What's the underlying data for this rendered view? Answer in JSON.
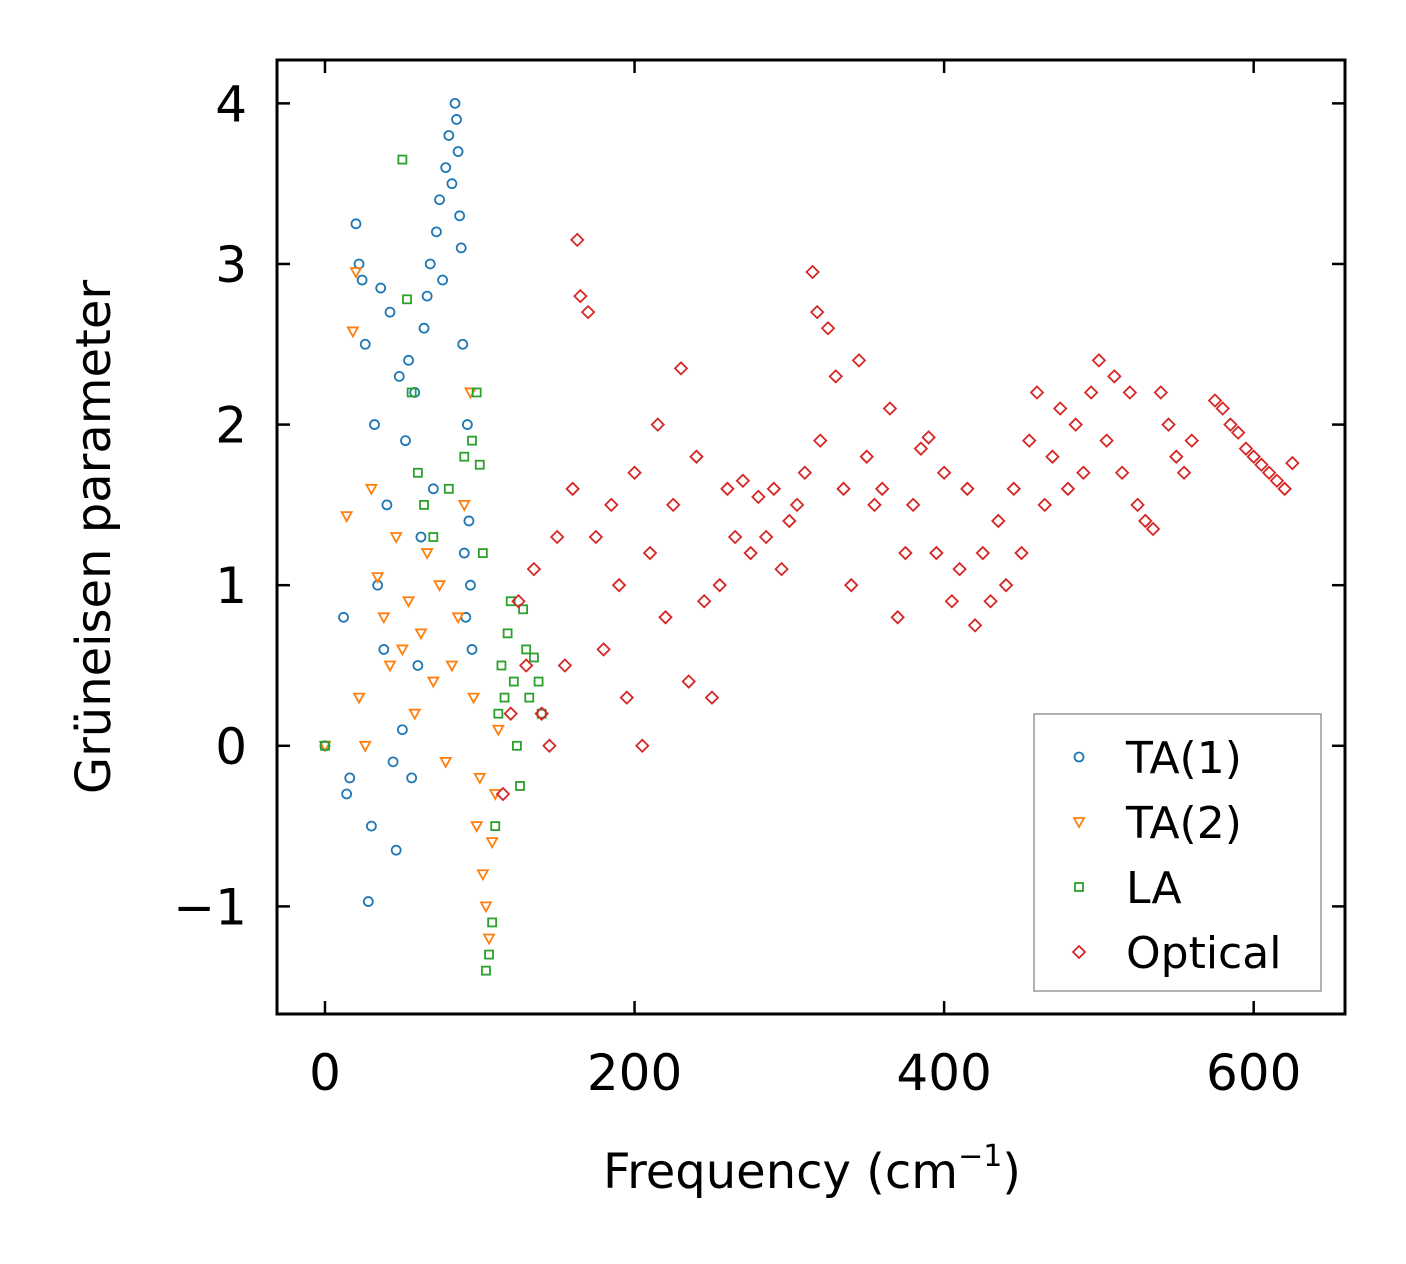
{
  "chart_data": {
    "type": "scatter",
    "title": "",
    "xlabel": "Frequency (cm",
    "xlabel_sup": "−1",
    "xlabel_close": ")",
    "ylabel": "Grüneisen parameter",
    "xlim": [
      -31,
      659
    ],
    "ylim": [
      -1.67,
      4.27
    ],
    "xticks": [
      0,
      200,
      400,
      600
    ],
    "xtick_labels": [
      "0",
      "200",
      "400",
      "600"
    ],
    "yticks": [
      -1,
      0,
      1,
      2,
      3,
      4
    ],
    "ytick_labels": [
      "−1",
      "0",
      "1",
      "2",
      "3",
      "4"
    ],
    "legend_position": "lower-right",
    "colors": {
      "ta1": "#1f77b4",
      "ta2": "#ff7f0e",
      "la": "#2ca02c",
      "optical": "#d62728"
    },
    "series": [
      {
        "name": "TA(1)",
        "marker": "circle",
        "color": "#1f77b4",
        "x": [
          0,
          12,
          14,
          16,
          20,
          22,
          24,
          26,
          28,
          30,
          32,
          34,
          36,
          38,
          40,
          42,
          44,
          46,
          48,
          50,
          52,
          54,
          56,
          58,
          60,
          62,
          64,
          66,
          68,
          70,
          72,
          74,
          76,
          78,
          80,
          82,
          84,
          85,
          86,
          87,
          88,
          89,
          90,
          91,
          92,
          93,
          94,
          95
        ],
        "y": [
          0.0,
          0.8,
          -0.3,
          -0.2,
          3.25,
          3.0,
          2.9,
          2.5,
          -0.97,
          -0.5,
          2.0,
          1.0,
          2.85,
          0.6,
          1.5,
          2.7,
          -0.1,
          -0.65,
          2.3,
          0.1,
          1.9,
          2.4,
          -0.2,
          2.2,
          0.5,
          1.3,
          2.6,
          2.8,
          3.0,
          1.6,
          3.2,
          3.4,
          2.9,
          3.6,
          3.8,
          3.5,
          4.0,
          3.9,
          3.7,
          3.3,
          3.1,
          2.5,
          1.2,
          0.8,
          2.0,
          1.4,
          1.0,
          0.6
        ]
      },
      {
        "name": "TA(2)",
        "marker": "triangle-down",
        "color": "#ff7f0e",
        "x": [
          0,
          14,
          18,
          20,
          22,
          26,
          30,
          34,
          38,
          42,
          46,
          50,
          54,
          58,
          62,
          66,
          70,
          74,
          78,
          82,
          86,
          90,
          94,
          96,
          98,
          100,
          102,
          104,
          106,
          108,
          110,
          112
        ],
        "y": [
          0.0,
          1.43,
          2.58,
          2.95,
          0.3,
          0.0,
          1.6,
          1.05,
          0.8,
          0.5,
          1.3,
          0.6,
          0.9,
          0.2,
          0.7,
          1.2,
          0.4,
          1.0,
          -0.1,
          0.5,
          0.8,
          1.5,
          2.2,
          0.3,
          -0.5,
          -0.2,
          -0.8,
          -1.0,
          -1.2,
          -0.6,
          -0.3,
          0.1
        ]
      },
      {
        "name": "LA",
        "marker": "square",
        "color": "#2ca02c",
        "x": [
          0,
          50,
          53,
          56,
          60,
          64,
          70,
          80,
          90,
          95,
          98,
          100,
          102,
          104,
          106,
          108,
          110,
          112,
          114,
          116,
          118,
          120,
          122,
          124,
          126,
          128,
          130,
          132,
          135,
          138,
          140
        ],
        "y": [
          0.0,
          3.65,
          2.78,
          2.2,
          1.7,
          1.5,
          1.3,
          1.6,
          1.8,
          1.9,
          2.2,
          1.75,
          1.2,
          -1.4,
          -1.3,
          -1.1,
          -0.5,
          0.2,
          0.5,
          0.3,
          0.7,
          0.9,
          0.4,
          0.0,
          -0.25,
          0.85,
          0.6,
          0.3,
          0.55,
          0.4,
          0.2
        ]
      },
      {
        "name": "Optical",
        "marker": "diamond",
        "color": "#d62728",
        "x": [
          115,
          120,
          125,
          130,
          135,
          140,
          145,
          150,
          155,
          160,
          163,
          165,
          170,
          175,
          180,
          185,
          190,
          195,
          200,
          205,
          210,
          215,
          220,
          225,
          230,
          235,
          240,
          245,
          250,
          255,
          260,
          265,
          270,
          275,
          280,
          285,
          290,
          295,
          300,
          305,
          310,
          315,
          318,
          320,
          325,
          330,
          335,
          340,
          345,
          350,
          355,
          360,
          365,
          370,
          375,
          380,
          385,
          390,
          395,
          400,
          405,
          410,
          415,
          420,
          425,
          430,
          435,
          440,
          445,
          450,
          455,
          460,
          465,
          470,
          475,
          480,
          485,
          490,
          495,
          500,
          505,
          510,
          515,
          520,
          525,
          530,
          535,
          540,
          545,
          550,
          555,
          560,
          575,
          580,
          585,
          590,
          595,
          600,
          605,
          610,
          615,
          620,
          625
        ],
        "y": [
          -0.3,
          0.2,
          0.9,
          0.5,
          1.1,
          0.2,
          0.0,
          1.3,
          0.5,
          1.6,
          3.15,
          2.8,
          2.7,
          1.3,
          0.6,
          1.5,
          1.0,
          0.3,
          1.7,
          0.0,
          1.2,
          2.0,
          0.8,
          1.5,
          2.35,
          0.4,
          1.8,
          0.9,
          0.3,
          1.0,
          1.6,
          1.3,
          1.65,
          1.2,
          1.55,
          1.3,
          1.6,
          1.1,
          1.4,
          1.5,
          1.7,
          2.95,
          2.7,
          1.9,
          2.6,
          2.3,
          1.6,
          1.0,
          2.4,
          1.8,
          1.5,
          1.6,
          2.1,
          0.8,
          1.2,
          1.5,
          1.85,
          1.92,
          1.2,
          1.7,
          0.9,
          1.1,
          1.6,
          0.75,
          1.2,
          0.9,
          1.4,
          1.0,
          1.6,
          1.2,
          1.9,
          2.2,
          1.5,
          1.8,
          2.1,
          1.6,
          2.0,
          1.7,
          2.2,
          2.4,
          1.9,
          2.3,
          1.7,
          2.2,
          1.5,
          1.4,
          1.35,
          2.2,
          2.0,
          1.8,
          1.7,
          1.9,
          2.15,
          2.1,
          2.0,
          1.95,
          1.85,
          1.8,
          1.75,
          1.7,
          1.65,
          1.6,
          1.76
        ]
      }
    ]
  }
}
